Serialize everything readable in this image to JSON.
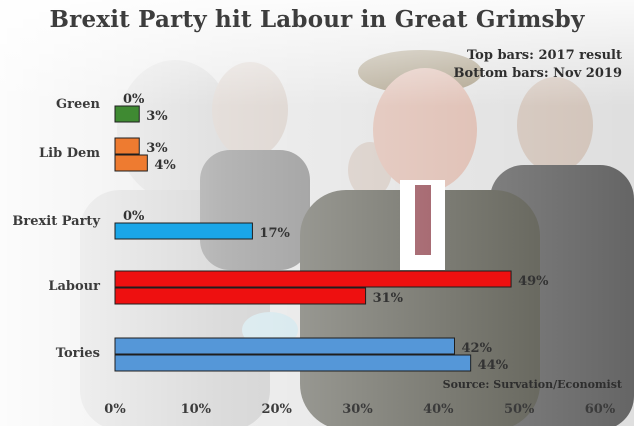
{
  "title": "Brexit Party hit Labour in Great Grimsby",
  "legend_note": {
    "top": "Top bars: 2017 result",
    "bottom": "Bottom bars: Nov 2019"
  },
  "source": "Source: Survation/Economist",
  "chart_data": {
    "type": "bar",
    "orientation": "horizontal",
    "categories": [
      "Green",
      "Lib Dem",
      "Brexit Party",
      "Labour",
      "Tories"
    ],
    "series": [
      {
        "name": "2017 result",
        "values": [
          0,
          3,
          0,
          49,
          42
        ]
      },
      {
        "name": "Nov 2019",
        "values": [
          3,
          4,
          17,
          31,
          44
        ]
      }
    ],
    "colors": [
      "#3f8a32",
      "#ee7b30",
      "#1aa6e8",
      "#ee1010",
      "#5597d8"
    ],
    "xlim": [
      0,
      60
    ],
    "xticks": [
      0,
      10,
      20,
      30,
      40,
      50,
      60
    ],
    "xtick_labels": [
      "0%",
      "10%",
      "20%",
      "30%",
      "40%",
      "50%",
      "60%"
    ],
    "value_suffix": "%",
    "grid": false,
    "xlabel": "",
    "ylabel": ""
  }
}
